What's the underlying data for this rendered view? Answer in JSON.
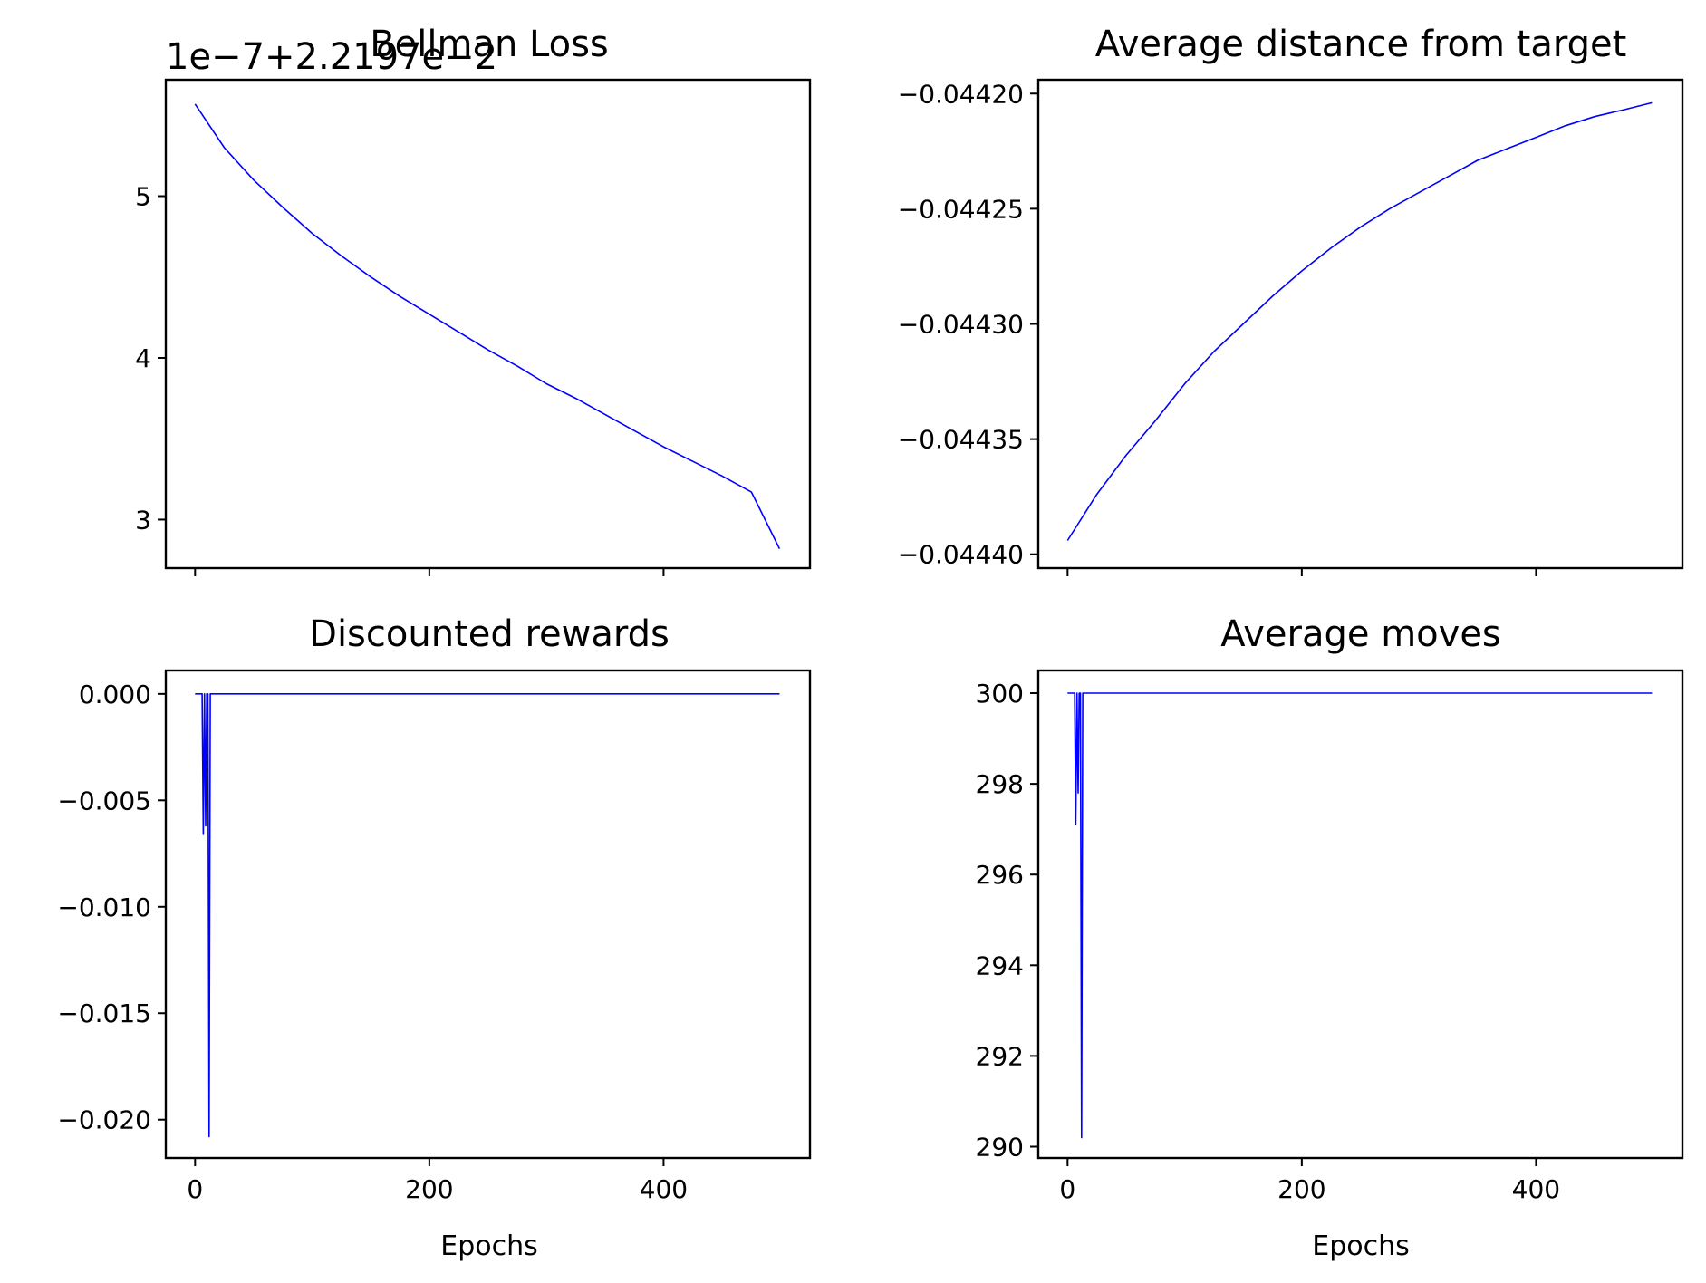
{
  "figure": {
    "line_color": "#0000ff"
  },
  "chart_data": [
    {
      "type": "line",
      "title": "Bellman Loss",
      "offset_text": "1e−7+2.2197e−2",
      "xlabel": "",
      "ylabel": "",
      "xlim": [
        -25,
        525
      ],
      "ylim": [
        2.7,
        5.72
      ],
      "xticks": [
        0,
        200,
        400
      ],
      "xtick_labels": [
        "",
        "",
        ""
      ],
      "yticks": [
        3,
        4,
        5
      ],
      "ytick_labels": [
        "3",
        "4",
        "5"
      ],
      "grid": false,
      "series": [
        {
          "x": [
            0,
            25,
            50,
            75,
            100,
            125,
            150,
            175,
            200,
            225,
            250,
            275,
            300,
            325,
            350,
            375,
            400,
            425,
            450,
            475,
            499
          ],
          "y": [
            5.57,
            5.3,
            5.1,
            4.93,
            4.77,
            4.63,
            4.5,
            4.38,
            4.27,
            4.16,
            4.05,
            3.95,
            3.84,
            3.75,
            3.65,
            3.55,
            3.45,
            3.36,
            3.27,
            3.17,
            2.82
          ]
        }
      ]
    },
    {
      "type": "line",
      "title": "Average distance from target",
      "offset_text": "",
      "xlabel": "",
      "ylabel": "",
      "xlim": [
        -25,
        525
      ],
      "ylim": [
        -0.044406,
        -0.044194
      ],
      "xticks": [
        0,
        200,
        400
      ],
      "xtick_labels": [
        "",
        "",
        ""
      ],
      "yticks": [
        -0.0444,
        -0.04435,
        -0.0443,
        -0.04425,
        -0.0442
      ],
      "ytick_labels": [
        "−0.04440",
        "−0.04435",
        "−0.04430",
        "−0.04425",
        "−0.04420"
      ],
      "grid": false,
      "series": [
        {
          "x": [
            0,
            25,
            50,
            75,
            100,
            125,
            150,
            175,
            200,
            225,
            250,
            275,
            300,
            325,
            350,
            375,
            400,
            425,
            450,
            475,
            499
          ],
          "y": [
            -0.044394,
            -0.044374,
            -0.044357,
            -0.044342,
            -0.044326,
            -0.044312,
            -0.0443,
            -0.044288,
            -0.044277,
            -0.044267,
            -0.044258,
            -0.04425,
            -0.044243,
            -0.044236,
            -0.044229,
            -0.044224,
            -0.044219,
            -0.044214,
            -0.04421,
            -0.044207,
            -0.044204
          ]
        }
      ]
    },
    {
      "type": "line",
      "title": "Discounted rewards",
      "offset_text": "",
      "xlabel": "Epochs",
      "ylabel": "",
      "xlim": [
        -25,
        525
      ],
      "ylim": [
        -0.0218,
        0.0011
      ],
      "xticks": [
        0,
        200,
        400
      ],
      "xtick_labels": [
        "0",
        "200",
        "400"
      ],
      "yticks": [
        0.0,
        -0.005,
        -0.01,
        -0.015,
        -0.02
      ],
      "ytick_labels": [
        "0.000",
        "−0.005",
        "−0.010",
        "−0.015",
        "−0.020"
      ],
      "grid": false,
      "series": [
        {
          "x": [
            0,
            6,
            7,
            8,
            9,
            10,
            11,
            12,
            13,
            14,
            15,
            499
          ],
          "y": [
            0,
            0,
            -0.0066,
            0,
            -0.0062,
            0,
            0,
            -0.0208,
            0,
            0,
            0,
            0
          ]
        }
      ]
    },
    {
      "type": "line",
      "title": "Average moves",
      "offset_text": "",
      "xlabel": "Epochs",
      "ylabel": "",
      "xlim": [
        -25,
        525
      ],
      "ylim": [
        289.75,
        300.5
      ],
      "xticks": [
        0,
        200,
        400
      ],
      "xtick_labels": [
        "0",
        "200",
        "400"
      ],
      "yticks": [
        290,
        292,
        294,
        296,
        298,
        300
      ],
      "ytick_labels": [
        "290",
        "292",
        "294",
        "296",
        "298",
        "300"
      ],
      "grid": false,
      "series": [
        {
          "x": [
            0,
            6,
            7,
            8,
            9,
            10,
            11,
            12,
            13,
            14,
            15,
            499
          ],
          "y": [
            300,
            300,
            297.1,
            300,
            297.8,
            300,
            300,
            290.2,
            300,
            300,
            300,
            300
          ]
        }
      ]
    }
  ]
}
